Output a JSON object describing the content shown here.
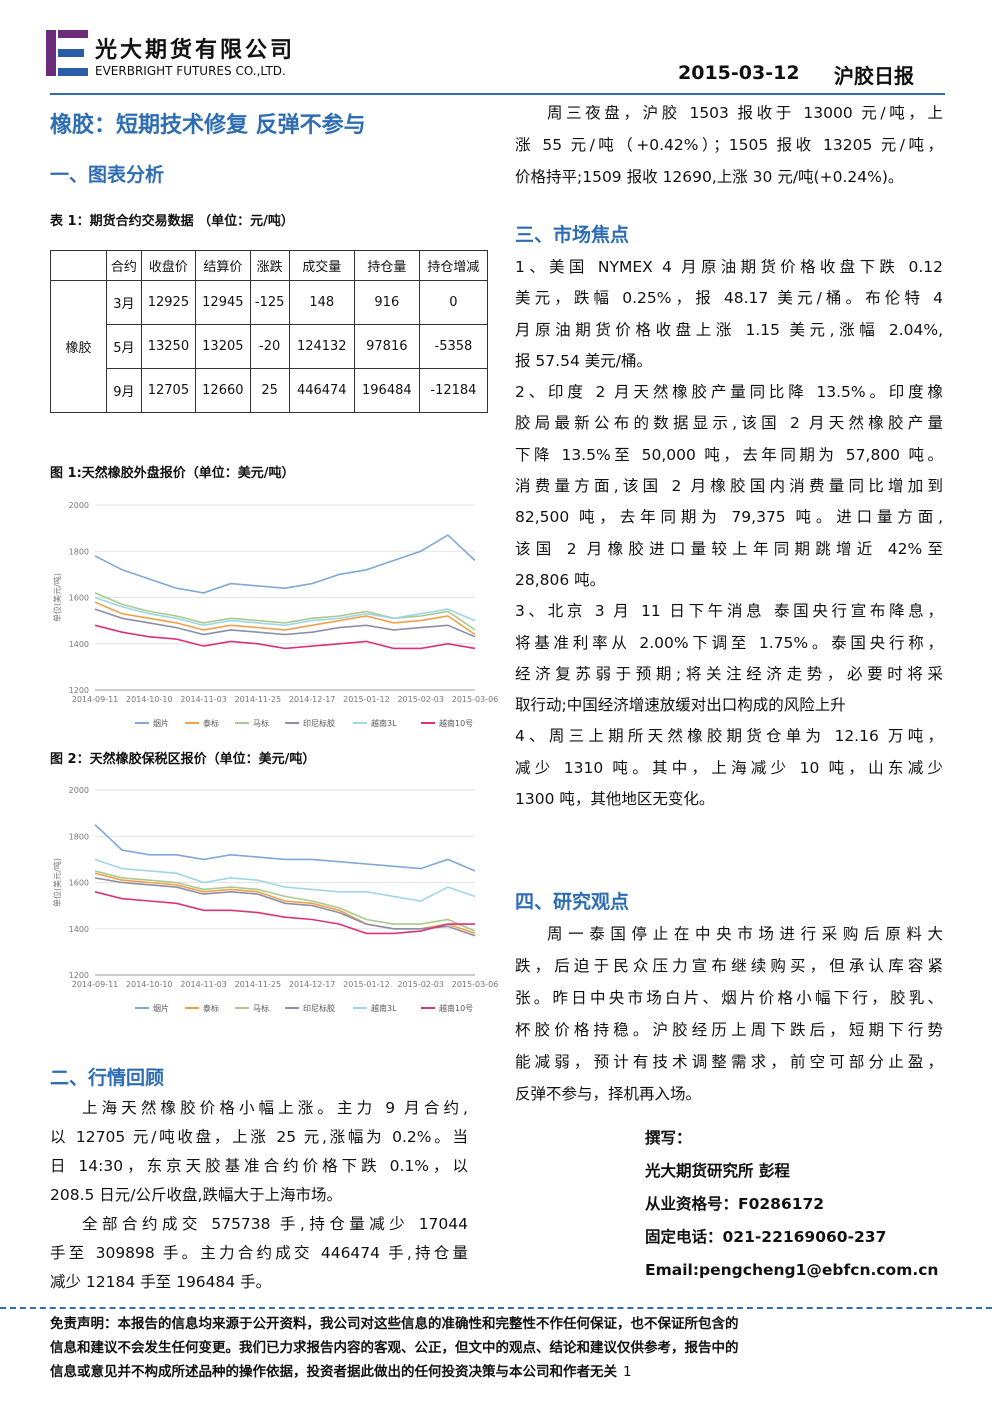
{
  "header": {
    "company_cn": "光大期货有限公司",
    "company_en": "EVERBRIGHT FUTURES CO.,LTD.",
    "date": "2015-03-12",
    "report_name": "沪胶日报"
  },
  "title": "橡胶：短期技术修复 反弹不参与",
  "section1": {
    "heading": "一、图表分析",
    "table_caption": "表 1：期货合约交易数据 （单位：元/吨）",
    "table": {
      "header": [
        "合约",
        "收盘价",
        "结算价",
        "涨跌",
        "成交量",
        "持仓量",
        "持仓增减"
      ],
      "product": "橡胶",
      "rows": [
        [
          "3月",
          12925,
          12945,
          -125,
          148,
          916,
          0
        ],
        [
          "5月",
          13250,
          13205,
          -20,
          124132,
          97816,
          -5358
        ],
        [
          "9月",
          12705,
          12660,
          25,
          446474,
          196484,
          -12184
        ]
      ]
    }
  },
  "chart_data": [
    {
      "type": "line",
      "title": "图 1:天然橡胶外盘报价（单位：美元/吨）",
      "y_label": "单位(美元/吨)",
      "categories": [
        "2014-09-11",
        null,
        "2014-10-10",
        null,
        "2014-11-03",
        null,
        "2014-11-25",
        null,
        "2014-12-17",
        null,
        "2015-01-12",
        null,
        "2015-02-03",
        null,
        "2015-03-06"
      ],
      "ylim": [
        1200,
        2000
      ],
      "yticks": [
        1200,
        1400,
        1600,
        1800,
        2000
      ],
      "grid": true,
      "series": [
        {
          "name": "烟片",
          "color": "#7fa7d8",
          "values": [
            1780,
            1720,
            1680,
            1640,
            1620,
            1660,
            1650,
            1640,
            1660,
            1700,
            1720,
            1760,
            1800,
            1870,
            1760
          ]
        },
        {
          "name": "泰标",
          "color": "#f0a04b",
          "values": [
            1580,
            1530,
            1510,
            1490,
            1460,
            1480,
            1470,
            1460,
            1480,
            1500,
            1520,
            1490,
            1500,
            1520,
            1440
          ]
        },
        {
          "name": "马标",
          "color": "#a9c98e",
          "values": [
            1620,
            1570,
            1540,
            1520,
            1490,
            1510,
            1500,
            1490,
            1510,
            1520,
            1540,
            1510,
            1520,
            1540,
            1460
          ]
        },
        {
          "name": "印尼标胶",
          "color": "#8a8fa8",
          "values": [
            1550,
            1510,
            1490,
            1470,
            1440,
            1460,
            1450,
            1440,
            1450,
            1470,
            1480,
            1460,
            1470,
            1480,
            1430
          ]
        },
        {
          "name": "越南3L",
          "color": "#9fd6e6",
          "values": [
            1600,
            1560,
            1530,
            1510,
            1480,
            1500,
            1490,
            1480,
            1500,
            1510,
            1530,
            1510,
            1530,
            1550,
            1500
          ]
        },
        {
          "name": "越南10号",
          "color": "#d9337a",
          "values": [
            1480,
            1450,
            1430,
            1420,
            1390,
            1410,
            1400,
            1380,
            1390,
            1400,
            1410,
            1380,
            1380,
            1400,
            1380
          ]
        }
      ]
    },
    {
      "type": "line",
      "title": "图 2：天然橡胶保税区报价（单位：美元/吨）",
      "y_label": "单位(美元/吨)",
      "categories": [
        "2014-09-11",
        null,
        "2014-10-10",
        null,
        "2014-11-03",
        null,
        "2014-11-25",
        null,
        "2014-12-17",
        null,
        "2015-01-12",
        null,
        "2015-02-03",
        null,
        "2015-03-06"
      ],
      "ylim": [
        1200,
        2000
      ],
      "yticks": [
        1200,
        1400,
        1600,
        1800,
        2000
      ],
      "grid": true,
      "series": [
        {
          "name": "烟片",
          "color": "#7fa7d8",
          "values": [
            1850,
            1740,
            1720,
            1720,
            1700,
            1720,
            1710,
            1700,
            1700,
            1690,
            1680,
            1670,
            1660,
            1700,
            1650
          ]
        },
        {
          "name": "泰标",
          "color": "#f0a04b",
          "values": [
            1640,
            1610,
            1600,
            1590,
            1560,
            1570,
            1560,
            1520,
            1510,
            1480,
            1420,
            1400,
            1400,
            1420,
            1380
          ]
        },
        {
          "name": "马标",
          "color": "#a9c98e",
          "values": [
            1650,
            1620,
            1610,
            1600,
            1570,
            1580,
            1570,
            1540,
            1520,
            1490,
            1440,
            1420,
            1420,
            1440,
            1390
          ]
        },
        {
          "name": "印尼标胶",
          "color": "#8a8fa8",
          "values": [
            1620,
            1600,
            1590,
            1580,
            1550,
            1560,
            1550,
            1510,
            1500,
            1470,
            1420,
            1400,
            1400,
            1410,
            1370
          ]
        },
        {
          "name": "越南3L",
          "color": "#9fd6e6",
          "values": [
            1700,
            1660,
            1650,
            1640,
            1600,
            1620,
            1610,
            1580,
            1570,
            1560,
            1560,
            1540,
            1520,
            1580,
            1540
          ]
        },
        {
          "name": "越南10号",
          "color": "#d9337a",
          "values": [
            1560,
            1530,
            1520,
            1510,
            1480,
            1480,
            1470,
            1450,
            1440,
            1420,
            1380,
            1380,
            1390,
            1420,
            1420
          ]
        }
      ]
    }
  ],
  "section2": {
    "heading": "二、行情回顾",
    "paragraphs": [
      [
        "上海天然橡胶价格小幅上涨。主力 9 月合约,",
        "以 12705 元/吨收盘，上涨 25 元,涨幅为 0.2%。当",
        "日 14:30，东京天胶基准合约价格下跌 0.1%，以",
        "208.5 日元/公斤收盘,跌幅大于上海市场。"
      ],
      [
        "全部合约成交 575738 手,持仓量减少 17044",
        "手至 309898 手。主力合约成交 446474 手,持仓量",
        "减少 12184 手至 196484 手。"
      ]
    ]
  },
  "night_session": [
    "周三夜盘，沪胶 1503 报收于 13000 元/吨，上",
    "涨 55 元/吨（+0.42%）；1505 报收 13205 元/吨，",
    "价格持平;1509 报收 12690,上涨 30 元/吨(+0.24%)。"
  ],
  "section3": {
    "heading": "三、市场焦点",
    "items": [
      [
        "1、美国 NYMEX 4 月原油期货价格收盘下跌 0.12",
        "美元，跌幅 0.25%，报 48.17 美元/桶。布伦特 4",
        "月原油期货价格收盘上涨 1.15 美元,涨幅 2.04%,",
        "报 57.54 美元/桶。"
      ],
      [
        "2、印度 2 月天然橡胶产量同比降 13.5%。印度橡",
        "胶局最新公布的数据显示,该国 2 月天然橡胶产量",
        "下降 13.5%至 50,000 吨，去年同期为 57,800 吨。",
        "消费量方面,该国 2 月橡胶国内消费量同比增加到",
        "82,500 吨，去年同期为 79,375 吨。进口量方面,",
        "该国 2 月橡胶进口量较上年同期跳增近 42%至",
        "28,806 吨。"
      ],
      [
        "3、北京 3 月 11 日下午消息 泰国央行宣布降息，",
        "将基准利率从 2.00%下调至 1.75%。泰国央行称，",
        "经济复苏弱于预期;将关注经济走势，必要时将采",
        "取行动;中国经济增速放缓对出口构成的风险上升"
      ],
      [
        "4、周三上期所天然橡胶期货仓单为 12.16 万吨，",
        "减少 1310 吨。其中，上海减少 10 吨，山东减少",
        "1300 吨，其他地区无变化。"
      ]
    ]
  },
  "section4": {
    "heading": "四、研究观点",
    "paragraph": [
      "周一泰国停止在中央市场进行采购后原料大",
      "跌，后迫于民众压力宣布继续购买，但承认库容紧",
      "张。昨日中央市场白片、烟片价格小幅下行，胶乳、",
      "杯胶价格持稳。沪胶经历上周下跌后，短期下行势",
      "能减弱，预计有技术调整需求，前空可部分止盈，",
      "反弹不参与，择机再入场。"
    ]
  },
  "author": [
    "撰写：",
    "光大期货研究所 彭程",
    "从业资格号：F0286172",
    "固定电话：021-22169060-237",
    "Email:pengcheng1@ebfcn.com.cn"
  ],
  "disclaimer": [
    "免责声明：本报告的信息均来源于公开资料，我公司对这些信息的准确性和完整性不作任何保证，也不保证所包含的",
    "信息和建议不会发生任何变更。我们已力求报告内容的客观、公正，但文中的观点、结论和建议仅供参考，报告中的",
    "信息或意见并不构成所述品种的操作依据，投资者据此做出的任何投资决策与本公司和作者无关"
  ],
  "page_number": "1"
}
